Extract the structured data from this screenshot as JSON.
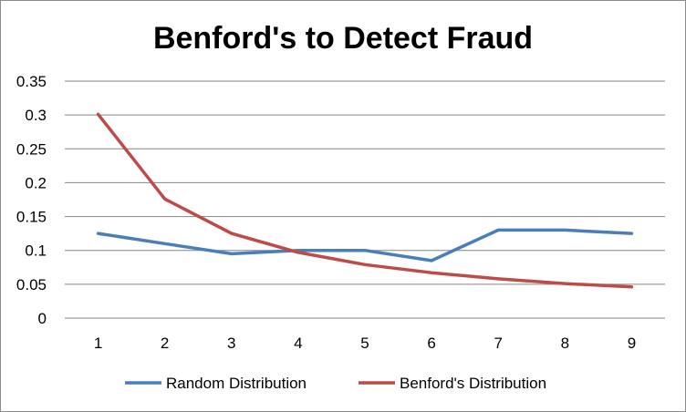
{
  "chart_data": {
    "type": "line",
    "title": "Benford's to Detect Fraud",
    "xlabel": "",
    "ylabel": "",
    "categories": [
      "1",
      "2",
      "3",
      "4",
      "5",
      "6",
      "7",
      "8",
      "9"
    ],
    "ylim": [
      0,
      0.35
    ],
    "yticks": [
      "0",
      "0.05",
      "0.1",
      "0.15",
      "0.2",
      "0.25",
      "0.3",
      "0.35"
    ],
    "grid": true,
    "legend_position": "bottom",
    "series": [
      {
        "name": "Random Distribution",
        "color": "#4a7ebb",
        "values": [
          0.125,
          0.11,
          0.095,
          0.1,
          0.1,
          0.085,
          0.13,
          0.13,
          0.125
        ]
      },
      {
        "name": "Benford's Distribution",
        "color": "#be4b48",
        "values": [
          0.301,
          0.176,
          0.125,
          0.097,
          0.079,
          0.067,
          0.058,
          0.051,
          0.046
        ]
      }
    ]
  }
}
